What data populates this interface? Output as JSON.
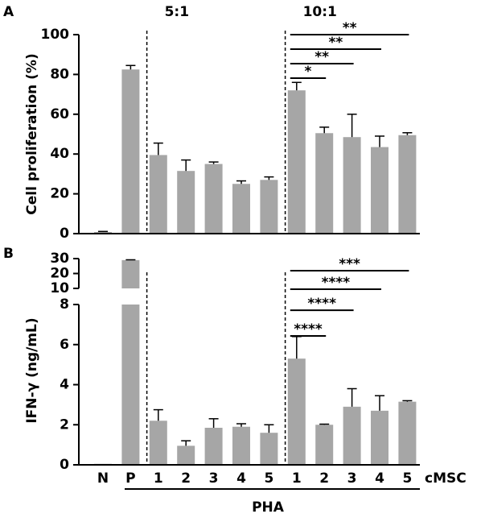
{
  "chart_data": [
    {
      "type": "bar",
      "panel": "A",
      "ylabel": "Cell proliferation (%)",
      "color": "#a6a6a6",
      "values": [
        0.8,
        82.5,
        39.5,
        31.5,
        35,
        25,
        27,
        72,
        50.5,
        48.5,
        43.5,
        49.5
      ],
      "errors": [
        0.3,
        2,
        6,
        5.5,
        1,
        1.5,
        1.5,
        4,
        3,
        11.5,
        5.5,
        1.2
      ],
      "ylim": [
        0,
        100
      ],
      "yticks": [
        0,
        20,
        40,
        60,
        80,
        100
      ],
      "groups": [
        {
          "label": "5:1",
          "start": 2
        },
        {
          "label": "10:1",
          "start": 7
        }
      ],
      "significance": [
        {
          "label": "*",
          "groups": [
            7,
            8
          ]
        },
        {
          "label": "**",
          "groups": [
            7,
            9
          ]
        },
        {
          "label": "**",
          "groups": [
            7,
            10
          ]
        },
        {
          "label": "**",
          "groups": [
            7,
            11
          ]
        }
      ]
    },
    {
      "type": "broken_bar",
      "panel": "B",
      "ylabel": "IFN-γ (ng/mL)",
      "color": "#a6a6a6",
      "categories": [
        "N",
        "P",
        "1",
        "2",
        "3",
        "4",
        "5",
        "1",
        "2",
        "3",
        "4",
        "5"
      ],
      "category_suffix": "cMSC",
      "xlabel": "PHA",
      "values": [
        0.05,
        29,
        2.2,
        0.95,
        1.85,
        1.9,
        1.6,
        5.3,
        2.0,
        2.9,
        2.7,
        3.15
      ],
      "errors": [
        0,
        0.2,
        0.55,
        0.25,
        0.45,
        0.15,
        0.4,
        1.1,
        0.03,
        0.9,
        0.75,
        0.05
      ],
      "ylim_lower": [
        0,
        8
      ],
      "yticks_lower": [
        0,
        2,
        4,
        6,
        8
      ],
      "ylim_upper": [
        10,
        30
      ],
      "yticks_upper": [
        10,
        20,
        30
      ],
      "groups": [
        {
          "start": 2
        },
        {
          "start": 7
        }
      ],
      "significance": [
        {
          "label": "****",
          "groups": [
            7,
            8
          ]
        },
        {
          "label": "****",
          "groups": [
            7,
            9
          ]
        },
        {
          "label": "****",
          "groups": [
            7,
            10
          ]
        },
        {
          "label": "***",
          "groups": [
            7,
            11
          ]
        }
      ]
    }
  ]
}
